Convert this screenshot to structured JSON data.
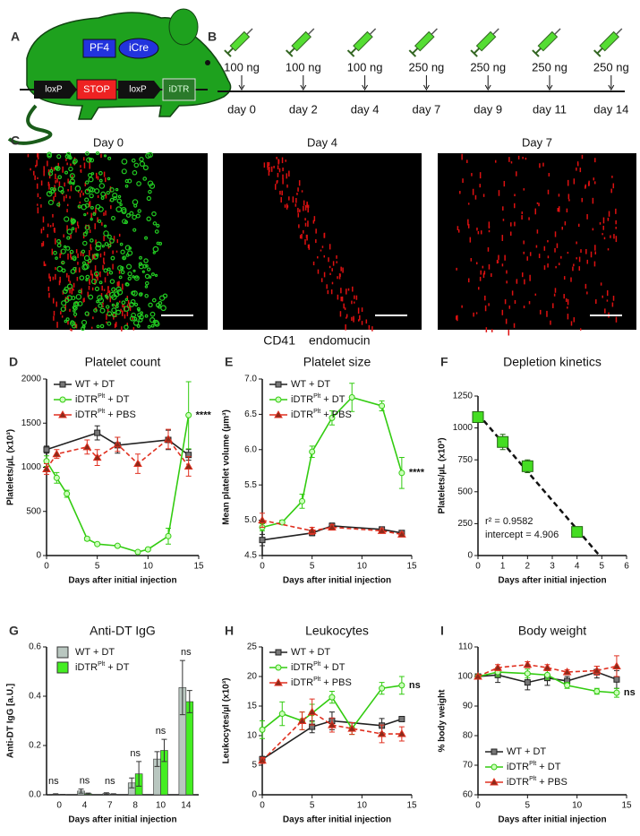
{
  "panel_a": {
    "panel": "A",
    "labels": [
      "PF4",
      "iCre",
      "loxP",
      "STOP",
      "loxP",
      "iDTR"
    ]
  },
  "panel_b": {
    "panel": "B",
    "doses": [
      "100 ng",
      "100 ng",
      "100 ng",
      "250 ng",
      "250 ng",
      "250 ng",
      "250 ng"
    ],
    "days": [
      "day 0",
      "day 2",
      "day 4",
      "day 7",
      "day 9",
      "day 11",
      "day 14"
    ]
  },
  "panel_c": {
    "panel": "C",
    "titles": [
      "Day 0",
      "Day 4",
      "Day 7"
    ],
    "legend": [
      {
        "text": "CD41",
        "color": "#22bb22"
      },
      {
        "text": "endomucin",
        "color": "#ee2222"
      }
    ]
  },
  "chart_data": [
    {
      "type": "line",
      "panel": "D",
      "title": "Platelet count",
      "xlabel": "Days after initial injection",
      "ylabel": "Platelets/µL (x10³)",
      "xlim": [
        0,
        15
      ],
      "xticks": [
        0,
        5,
        10,
        15
      ],
      "ylim": [
        0,
        2000
      ],
      "yticks": [
        0,
        500,
        1000,
        1500,
        2000
      ],
      "legend": "upper left",
      "annotation": "****",
      "series": [
        {
          "name": [
            {
              "text": "WT + DT"
            }
          ],
          "color": "#222222",
          "fill": "#777777",
          "marker": "square",
          "dash": false,
          "x": [
            0,
            5,
            7,
            12,
            14
          ],
          "values": [
            1200,
            1390,
            1250,
            1310,
            1140
          ],
          "errors": [
            40,
            80,
            90,
            110,
            60
          ]
        },
        {
          "name": [
            {
              "text": "iDTR"
            },
            {
              "text": "Plt",
              "sup": true
            },
            {
              "text": " + DT"
            }
          ],
          "color": "#33cc11",
          "fill": "#ccffbb",
          "marker": "circle",
          "dash": false,
          "x": [
            0,
            1,
            2,
            4,
            5,
            7,
            9,
            10,
            12,
            14
          ],
          "values": [
            1070,
            880,
            700,
            190,
            130,
            110,
            40,
            70,
            220,
            1590
          ],
          "errors": [
            60,
            60,
            40,
            20,
            15,
            15,
            10,
            15,
            90,
            380
          ]
        },
        {
          "name": [
            {
              "text": "iDTR"
            },
            {
              "text": "Plt",
              "sup": true
            },
            {
              "text": " + PBS"
            }
          ],
          "color": "#e03020",
          "fill": "#8b2a1a",
          "marker": "triangle",
          "dash": true,
          "x": [
            0,
            1,
            4,
            5,
            7,
            9,
            12,
            14
          ],
          "values": [
            980,
            1150,
            1230,
            1110,
            1260,
            1040,
            1320,
            1010
          ],
          "errors": [
            60,
            50,
            80,
            90,
            80,
            110,
            110,
            110
          ]
        }
      ]
    },
    {
      "type": "line",
      "panel": "E",
      "title": "Platelet size",
      "xlabel": "Days after initial injection",
      "ylabel": "Mean platelet volume (µm³)",
      "xlim": [
        0,
        15
      ],
      "xticks": [
        0,
        5,
        10,
        15
      ],
      "ylim": [
        4.5,
        7.0
      ],
      "yticks": [
        4.5,
        {
          "value": 5,
          "label": "5.0"
        },
        5.5,
        {
          "value": 6,
          "label": "6.0"
        },
        6.5,
        {
          "value": 7,
          "label": "7.0"
        }
      ],
      "legend": "upper left",
      "annotation": "****",
      "series": [
        {
          "name": [
            {
              "text": "WT + DT"
            }
          ],
          "color": "#222222",
          "fill": "#777777",
          "marker": "square",
          "dash": false,
          "x": [
            0,
            5,
            7,
            12,
            14
          ],
          "values": [
            4.72,
            4.82,
            4.92,
            4.87,
            4.82
          ],
          "errors": [
            0.08,
            0.04,
            0.04,
            0.03,
            0.03
          ]
        },
        {
          "name": [
            {
              "text": "iDTR"
            },
            {
              "text": "Plt",
              "sup": true
            },
            {
              "text": " + DT"
            }
          ],
          "color": "#33cc11",
          "fill": "#ccffbb",
          "marker": "circle",
          "dash": false,
          "x": [
            0,
            2,
            4,
            5,
            7,
            9,
            12,
            14
          ],
          "values": [
            4.9,
            4.97,
            5.27,
            5.97,
            6.45,
            6.74,
            6.62,
            5.67
          ],
          "errors": [
            0.05,
            0.03,
            0.1,
            0.08,
            0.1,
            0.2,
            0.07,
            0.22
          ]
        },
        {
          "name": [
            {
              "text": "iDTR"
            },
            {
              "text": "Plt",
              "sup": true
            },
            {
              "text": " + PBS"
            }
          ],
          "color": "#e03020",
          "fill": "#8b2a1a",
          "marker": "triangle",
          "dash": true,
          "x": [
            0,
            5,
            7,
            12,
            14
          ],
          "values": [
            5.0,
            4.85,
            4.9,
            4.85,
            4.8
          ],
          "errors": [
            0.1,
            0.05,
            0.04,
            0.03,
            0.03
          ]
        }
      ]
    },
    {
      "type": "scatter",
      "panel": "F",
      "title": "Depletion kinetics",
      "xlabel": "Days after initial injection",
      "ylabel": "Platelets/µL (x10³)",
      "xlim": [
        0,
        6
      ],
      "xticks": [
        0,
        1,
        2,
        3,
        4,
        5,
        6
      ],
      "ylim": [
        0,
        1250
      ],
      "yticks": [
        0,
        250,
        500,
        750,
        1000,
        1250
      ],
      "annotations": [
        "r² = 0.9582",
        "intercept = 4.906"
      ],
      "series": [
        {
          "color": "#226611",
          "fill": "#44dd22",
          "marker": "square",
          "x": [
            0,
            1,
            2,
            4
          ],
          "values": [
            1085,
            890,
            700,
            185
          ],
          "errors": [
            40,
            60,
            50,
            25
          ]
        }
      ],
      "fit_line": {
        "x": [
          0,
          4.906
        ],
        "values": [
          1110,
          0
        ]
      }
    },
    {
      "type": "bar",
      "panel": "G",
      "title": "Anti-DT IgG",
      "xlabel": "Days after initial injection",
      "ylabel": "Anti-DT IgG [a.U.]",
      "categories": [
        "0",
        "4",
        "7",
        "8",
        "10",
        "14"
      ],
      "ylim": [
        0,
        0.6
      ],
      "yticks": [
        {
          "value": 0,
          "label": "0.0"
        },
        0.2,
        0.4,
        0.6
      ],
      "legend": "upper left",
      "significance": [
        "ns",
        "ns",
        "ns",
        "ns",
        "ns",
        "ns"
      ],
      "series": [
        {
          "name": [
            {
              "text": "WT + DT"
            }
          ],
          "color": "#b9c7c0",
          "values": [
            0.002,
            0.015,
            0.005,
            0.048,
            0.145,
            0.435
          ],
          "errors": [
            0.002,
            0.008,
            0.003,
            0.02,
            0.03,
            0.11
          ]
        },
        {
          "name": [
            {
              "text": "iDTR"
            },
            {
              "text": "Plt",
              "sup": true
            },
            {
              "text": " + DT"
            }
          ],
          "color": "#44ee22",
          "values": [
            0.001,
            0.004,
            0.002,
            0.085,
            0.18,
            0.378
          ],
          "errors": [
            0.001,
            0.003,
            0.002,
            0.05,
            0.045,
            0.045
          ]
        }
      ]
    },
    {
      "type": "line",
      "panel": "H",
      "title": "Leukocytes",
      "xlabel": "Days after initial injection",
      "ylabel": "Leukocytes/µl (x10³)",
      "xlim": [
        0,
        15
      ],
      "xticks": [
        0,
        5,
        10,
        15
      ],
      "ylim": [
        0,
        25
      ],
      "yticks": [
        0,
        5,
        10,
        15,
        20,
        25
      ],
      "legend": "upper left",
      "annotation": "ns",
      "series": [
        {
          "name": [
            {
              "text": "WT + DT"
            }
          ],
          "color": "#222222",
          "fill": "#777777",
          "marker": "square",
          "dash": false,
          "x": [
            0,
            5,
            7,
            12,
            14
          ],
          "values": [
            6,
            11.5,
            12.5,
            11.7,
            12.8
          ],
          "errors": [
            0.5,
            1,
            1.5,
            1.2,
            0.4
          ]
        },
        {
          "name": [
            {
              "text": "iDTR"
            },
            {
              "text": "Plt",
              "sup": true
            },
            {
              "text": " + DT"
            }
          ],
          "color": "#33cc11",
          "fill": "#ccffbb",
          "marker": "circle",
          "dash": false,
          "x": [
            0,
            2,
            4,
            5,
            7,
            9,
            12,
            14
          ],
          "values": [
            11,
            13.7,
            12.5,
            13.8,
            16.5,
            11.2,
            18,
            18.5
          ],
          "errors": [
            1.5,
            2,
            1.5,
            1.5,
            1,
            1,
            1,
            1.5
          ]
        },
        {
          "name": [
            {
              "text": "iDTR"
            },
            {
              "text": "Plt",
              "sup": true
            },
            {
              "text": " + PBS"
            }
          ],
          "color": "#e03020",
          "fill": "#8b2a1a",
          "marker": "triangle",
          "dash": true,
          "x": [
            0,
            4,
            5,
            7,
            9,
            12,
            14
          ],
          "values": [
            5.8,
            12.5,
            14,
            11.8,
            11.2,
            10.3,
            10.3
          ],
          "errors": [
            0.5,
            1.5,
            2.2,
            1.2,
            1,
            1.5,
            1.2
          ]
        }
      ]
    },
    {
      "type": "line",
      "panel": "I",
      "title": "Body weight",
      "xlabel": "Days after initial injection",
      "ylabel": "% body weight",
      "xlim": [
        0,
        15
      ],
      "xticks": [
        0,
        5,
        10,
        15
      ],
      "ylim": [
        60,
        110
      ],
      "yticks": [
        60,
        70,
        80,
        90,
        100,
        110
      ],
      "legend": "lower left",
      "annotation": "ns",
      "series": [
        {
          "name": [
            {
              "text": "WT + DT"
            }
          ],
          "color": "#222222",
          "fill": "#777777",
          "marker": "square",
          "dash": false,
          "x": [
            0,
            2,
            5,
            7,
            9,
            12,
            14
          ],
          "values": [
            100,
            100.5,
            98,
            99.5,
            98.5,
            101.5,
            99
          ],
          "errors": [
            0.5,
            2.5,
            2.5,
            2.5,
            1.5,
            2,
            3
          ]
        },
        {
          "name": [
            {
              "text": "iDTR"
            },
            {
              "text": "Plt",
              "sup": true
            },
            {
              "text": " + DT"
            }
          ],
          "color": "#33cc11",
          "fill": "#ccffbb",
          "marker": "circle",
          "dash": false,
          "x": [
            0,
            2,
            5,
            7,
            9,
            12,
            14
          ],
          "values": [
            100,
            101.5,
            101,
            100.5,
            97,
            95,
            94.5
          ],
          "errors": [
            0.5,
            1.5,
            1.5,
            1.5,
            1,
            1,
            1.5
          ]
        },
        {
          "name": [
            {
              "text": "iDTR"
            },
            {
              "text": "Plt",
              "sup": true
            },
            {
              "text": " + PBS"
            }
          ],
          "color": "#e03020",
          "fill": "#8b2a1a",
          "marker": "triangle",
          "dash": true,
          "x": [
            0,
            2,
            5,
            7,
            9,
            12,
            14
          ],
          "values": [
            100,
            103,
            104,
            103,
            101.5,
            102,
            103.5
          ],
          "errors": [
            0.5,
            1,
            1,
            1,
            0.8,
            1.5,
            3.5
          ]
        }
      ]
    }
  ]
}
